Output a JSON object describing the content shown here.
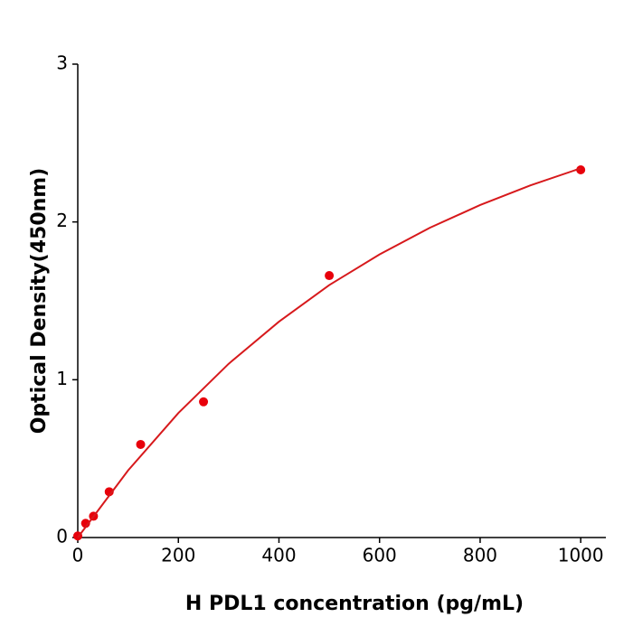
{
  "chart_data": {
    "type": "scatter",
    "x_label": "H  PDL1 concentration (pg/mL)",
    "y_label": "Optical Density(450nm)",
    "xlim": [
      0,
      1050
    ],
    "ylim": [
      0,
      3
    ],
    "xticks": [
      0,
      200,
      400,
      600,
      800,
      1000
    ],
    "yticks": [
      0,
      1,
      2,
      3
    ],
    "series": [
      {
        "style": "markers",
        "color": "#e8000b",
        "x": [
          0,
          15.6,
          31.25,
          62.5,
          125,
          250,
          500,
          1000
        ],
        "values": [
          0.01,
          0.09,
          0.135,
          0.29,
          0.59,
          0.86,
          1.66,
          2.33
        ]
      },
      {
        "style": "line",
        "color": "#d7191c",
        "x": [
          0,
          100,
          200,
          300,
          400,
          500,
          600,
          700,
          800,
          900,
          1000
        ],
        "values": [
          0,
          0.425,
          0.789,
          1.101,
          1.368,
          1.6,
          1.794,
          1.963,
          2.107,
          2.232,
          2.34
        ]
      }
    ]
  }
}
